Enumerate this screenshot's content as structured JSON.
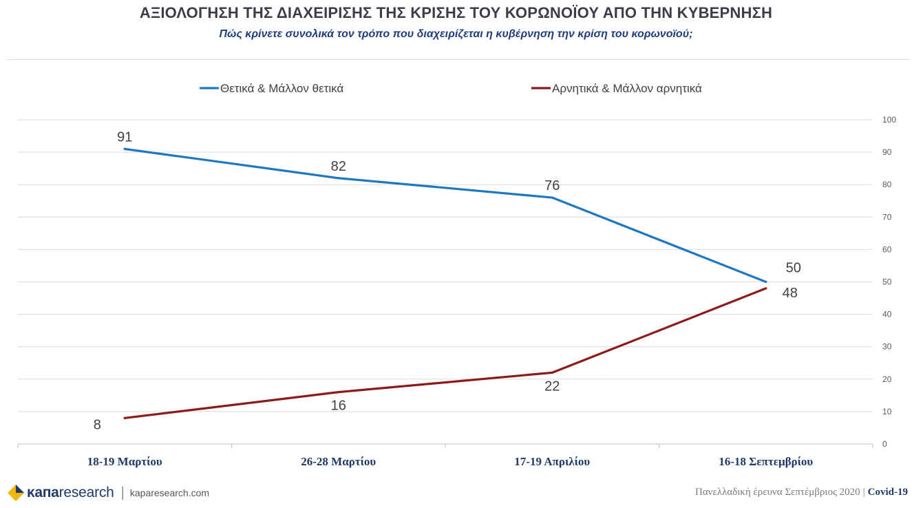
{
  "header": {
    "title": "ΑΞΙΟΛΟΓΗΣΗ ΤΗΣ ΔΙΑΧΕΙΡΙΣΗΣ ΤΗΣ ΚΡΙΣΗΣ ΤΟΥ ΚΟΡΩΝΟΪΟΥ ΑΠΟ ΤΗΝ ΚΥΒΕΡΝΗΣΗ",
    "subtitle": "Πώς κρίνετε συνολικά τον τρόπο που διαχειρίζεται η κυβέρνηση την κρίση του κορωνοϊού;"
  },
  "chart_data": {
    "type": "line",
    "title": "ΑΞΙΟΛΟΓΗΣΗ ΤΗΣ ΔΙΑΧΕΙΡΙΣΗΣ ΤΗΣ ΚΡΙΣΗΣ ΤΟΥ ΚΟΡΩΝΟΪΟΥ ΑΠΟ ΤΗΝ ΚΥΒΕΡΝΗΣΗ",
    "subtitle": "Πώς κρίνετε συνολικά τον τρόπο που διαχειρίζεται η κυβέρνηση την κρίση του κορωνοϊού;",
    "categories": [
      "18-19 Μαρτίου",
      "26-28 Μαρτίου",
      "17-19 Απριλίου",
      "16-18 Σεπτεμβρίου"
    ],
    "series": [
      {
        "name": "Θετικά & Μάλλον θετικά",
        "values": [
          91,
          82,
          76,
          50
        ],
        "color": "#1f77c0",
        "label_position": "above"
      },
      {
        "name": "Αρνητικά & Μάλλον αρνητικά",
        "values": [
          8,
          16,
          22,
          48
        ],
        "color": "#8b1a1a",
        "label_position": "below"
      }
    ],
    "ylim": [
      0,
      100
    ],
    "yticks": [
      0,
      10,
      20,
      30,
      40,
      50,
      60,
      70,
      80,
      90,
      100
    ],
    "y_axis_side": "right",
    "grid": true,
    "legend_position": "top",
    "xlabel": "",
    "ylabel": ""
  },
  "footer": {
    "brand_bold": "κaпa",
    "brand_light": "research",
    "separator": "|",
    "url": "kaparesearch.com",
    "survey": "Πανελλαδική έρευνα Σεπτέμβριος 2020",
    "pipe": "|",
    "tag": "Covid-19",
    "logo_colors": [
      "#f2b705",
      "#1f3a68"
    ]
  }
}
